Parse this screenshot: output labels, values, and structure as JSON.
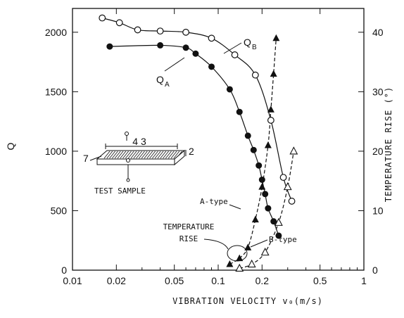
{
  "chart_data": {
    "type": "scatter",
    "x_scale": "log",
    "xlim": [
      0.01,
      1
    ],
    "ylim_left": [
      0,
      2200
    ],
    "ylim_right": [
      0,
      44
    ],
    "grid": false,
    "xlabel": "VIBRATION VELOCITY v₀(m/s)",
    "ylabel_left": "Q",
    "ylabel_right": "TEMPERATURE RISE (°)",
    "x_ticks": [
      0.01,
      0.02,
      0.05,
      0.1,
      0.2,
      0.5,
      1
    ],
    "x_tick_labels": [
      "0.01",
      "0.02",
      "0.05",
      "0.1",
      "0.2",
      "0.5",
      "1"
    ],
    "y_left_ticks": [
      0,
      500,
      1000,
      1500,
      2000
    ],
    "y_left_tick_labels": [
      "0",
      "500",
      "1000",
      "1500",
      "2000"
    ],
    "y_right_ticks": [
      0,
      10,
      20,
      30,
      40
    ],
    "y_right_tick_labels": [
      "0",
      "10",
      "20",
      "30",
      "40"
    ],
    "series": [
      {
        "name": "Q_A",
        "axis": "left",
        "marker": "filled-circle",
        "line": "solid",
        "x": [
          0.018,
          0.04,
          0.06,
          0.07,
          0.09,
          0.12,
          0.14,
          0.16,
          0.175,
          0.19,
          0.2,
          0.21,
          0.22,
          0.24,
          0.26
        ],
        "y": [
          1880,
          1890,
          1870,
          1820,
          1710,
          1520,
          1330,
          1130,
          1010,
          880,
          760,
          640,
          520,
          410,
          290
        ]
      },
      {
        "name": "Q_B",
        "axis": "left",
        "marker": "open-circle",
        "line": "solid",
        "x": [
          0.016,
          0.021,
          0.028,
          0.04,
          0.06,
          0.09,
          0.13,
          0.18,
          0.23,
          0.28,
          0.32
        ],
        "y": [
          2120,
          2080,
          2020,
          2010,
          2000,
          1950,
          1810,
          1640,
          1260,
          780,
          580
        ]
      },
      {
        "name": "A-type",
        "axis": "right",
        "marker": "filled-triangle",
        "line": "dashed",
        "x": [
          0.12,
          0.14,
          0.16,
          0.18,
          0.2,
          0.22,
          0.23,
          0.24,
          0.25
        ],
        "y": [
          1.0,
          2.0,
          3.8,
          8.5,
          14.0,
          21.0,
          27.0,
          33.0,
          39.0
        ]
      },
      {
        "name": "B-type",
        "axis": "right",
        "marker": "open-triangle",
        "line": "dashed",
        "x": [
          0.14,
          0.17,
          0.21,
          0.26,
          0.3,
          0.33
        ],
        "y": [
          0.3,
          1.0,
          3.0,
          8.0,
          14.0,
          20.0
        ]
      }
    ],
    "annotations": {
      "qa_label": "Q",
      "qa_sub": "A",
      "qb_label": "Q",
      "qb_sub": "B",
      "a_type": "A-type",
      "b_type": "B-type",
      "temp_rise_1": "TEMPERATURE",
      "temp_rise_2": "RISE",
      "sample_caption": "TEST SAMPLE",
      "sample_length": "4 3",
      "sample_width": "7",
      "sample_thickness": "2"
    }
  }
}
